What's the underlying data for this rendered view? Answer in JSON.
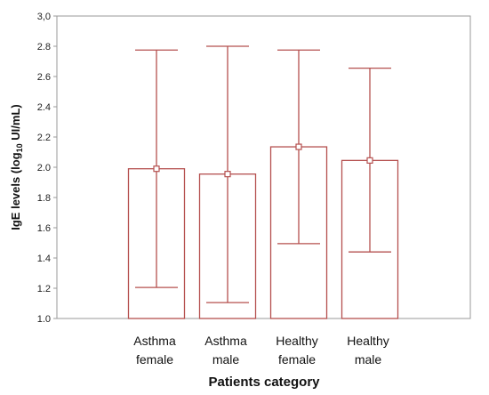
{
  "chart_data": {
    "type": "bar",
    "title": "",
    "xlabel": "Patients category",
    "ylabel_main": "IgE levels (log",
    "ylabel_sub": "10",
    "ylabel_unit": " UI/mL)",
    "ylim": [
      1.0,
      3.0
    ],
    "yticks": [
      "1.0",
      "1.2",
      "1.4",
      "1.6",
      "1.8",
      "2.0",
      "2.2",
      "2.4",
      "2.6",
      "2.8",
      "3,0"
    ],
    "grid": false,
    "legend": "none",
    "bar_color": "#b5504f",
    "categories": [
      {
        "line1": "Asthma",
        "line2": "female"
      },
      {
        "line1": "Asthma",
        "line2": "male"
      },
      {
        "line1": "Healthy",
        "line2": "female"
      },
      {
        "line1": "Healthy",
        "line2": "male"
      }
    ],
    "values": [
      1.99,
      1.955,
      2.135,
      2.045
    ],
    "error_low": [
      1.205,
      1.105,
      1.495,
      1.44
    ],
    "error_high": [
      2.775,
      2.8,
      2.775,
      2.655
    ]
  }
}
